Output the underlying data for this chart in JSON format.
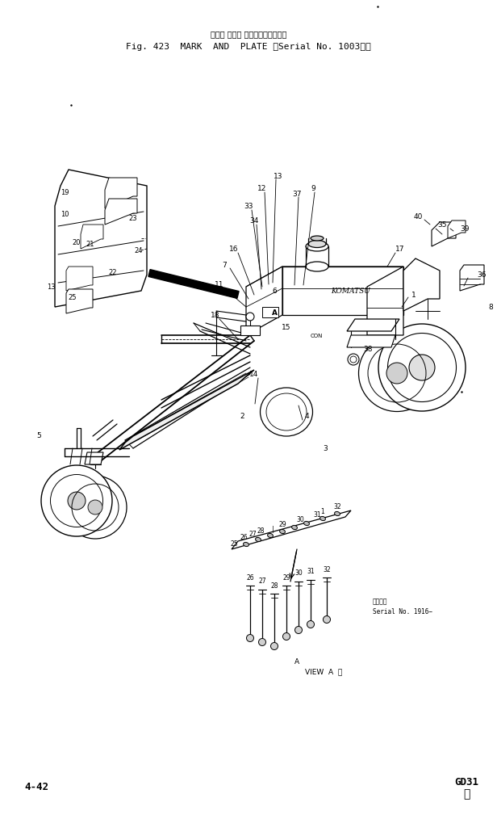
{
  "title_line1": "マーク および プレート（適用号機",
  "title_line2": "Fig. 423  MARK  AND  PLATE （Serial No. 1003～）",
  "footer_left": "4-42",
  "footer_right_line1": "GD31",
  "footer_right_line2": "①",
  "bg_color": "#ffffff",
  "text_color": "#000000",
  "fig_width": 6.16,
  "fig_height": 10.14,
  "dpi": 100,
  "serial_note_line1": "適用号機",
  "serial_note_line2": "Serial No. 1916−",
  "view_a_label": "A",
  "view_a_text": "VIEW  A  見"
}
